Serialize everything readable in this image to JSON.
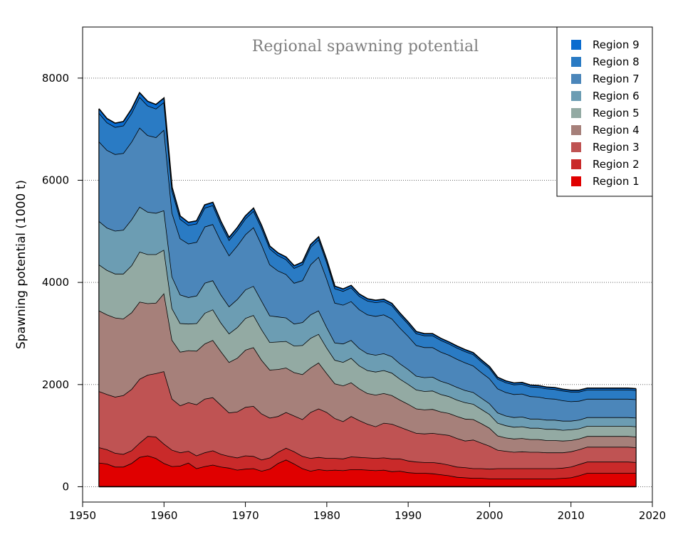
{
  "chart_data": {
    "type": "area",
    "stacked": true,
    "title": "Regional spawning potential",
    "xlabel": "",
    "ylabel": "Spawning potential (1000 t)",
    "xlim": [
      1950,
      2020
    ],
    "ylim": [
      -300,
      9000
    ],
    "xticks": [
      1950,
      1960,
      1970,
      1980,
      1990,
      2000,
      2010,
      2020
    ],
    "yticks": [
      0,
      2000,
      4000,
      6000,
      8000
    ],
    "grid": "horizontal dotted",
    "legend_position": "top-right",
    "legend_order": [
      "Region 9",
      "Region 8",
      "Region 7",
      "Region 6",
      "Region 5",
      "Region 4",
      "Region 3",
      "Region 2",
      "Region 1"
    ],
    "x": [
      1952,
      1953,
      1954,
      1955,
      1956,
      1957,
      1958,
      1959,
      1960,
      1961,
      1962,
      1963,
      1964,
      1965,
      1966,
      1967,
      1968,
      1969,
      1970,
      1971,
      1972,
      1973,
      1974,
      1975,
      1976,
      1977,
      1978,
      1979,
      1980,
      1981,
      1982,
      1983,
      1984,
      1985,
      1986,
      1987,
      1988,
      1989,
      1990,
      1991,
      1992,
      1993,
      1994,
      1995,
      1996,
      1997,
      1998,
      1999,
      2000,
      2001,
      2002,
      2003,
      2004,
      2005,
      2006,
      2007,
      2008,
      2009,
      2010,
      2011,
      2012,
      2013,
      2014,
      2015,
      2016,
      2017,
      2018
    ],
    "series": [
      {
        "name": "Region 1",
        "color": "#e00000",
        "values": [
          470,
          450,
          390,
          390,
          460,
          580,
          610,
          560,
          460,
          400,
          410,
          470,
          360,
          400,
          430,
          390,
          370,
          330,
          350,
          360,
          310,
          350,
          460,
          530,
          450,
          360,
          310,
          340,
          320,
          330,
          320,
          340,
          340,
          330,
          320,
          330,
          300,
          310,
          280,
          270,
          270,
          260,
          240,
          220,
          190,
          180,
          170,
          170,
          160,
          160,
          160,
          160,
          160,
          160,
          160,
          160,
          160,
          170,
          180,
          220,
          270,
          270,
          270,
          270,
          270,
          270,
          270
        ]
      },
      {
        "name": "Region 2",
        "color": "#c92a2a",
        "values": [
          300,
          280,
          270,
          250,
          250,
          280,
          380,
          420,
          380,
          320,
          260,
          230,
          250,
          270,
          280,
          250,
          230,
          240,
          260,
          240,
          220,
          220,
          220,
          230,
          240,
          240,
          250,
          240,
          240,
          230,
          230,
          250,
          240,
          240,
          240,
          240,
          250,
          240,
          230,
          220,
          210,
          220,
          220,
          210,
          200,
          200,
          190,
          190,
          190,
          200,
          200,
          200,
          200,
          200,
          200,
          200,
          200,
          200,
          210,
          220,
          220,
          220,
          220,
          220,
          220,
          220,
          210
        ]
      },
      {
        "name": "Region 3",
        "color": "#bf5353",
        "values": [
          1100,
          1080,
          1100,
          1150,
          1200,
          1250,
          1200,
          1240,
          1420,
          1000,
          920,
          950,
          1000,
          1050,
          1040,
          960,
          850,
          900,
          950,
          980,
          900,
          780,
          700,
          700,
          700,
          720,
          900,
          950,
          900,
          780,
          730,
          790,
          720,
          660,
          620,
          680,
          680,
          620,
          600,
          560,
          560,
          570,
          570,
          580,
          560,
          520,
          560,
          500,
          450,
          360,
          340,
          320,
          330,
          320,
          320,
          310,
          310,
          300,
          300,
          290,
          290,
          290,
          290,
          290,
          290,
          290,
          290
        ]
      },
      {
        "name": "Region 4",
        "color": "#a6807a",
        "values": [
          1580,
          1560,
          1550,
          1500,
          1500,
          1510,
          1400,
          1380,
          1530,
          1150,
          1050,
          1020,
          1050,
          1080,
          1120,
          1050,
          990,
          1050,
          1120,
          1150,
          1050,
          940,
          920,
          870,
          850,
          880,
          870,
          900,
          760,
          680,
          700,
          660,
          620,
          600,
          620,
          580,
          560,
          530,
          510,
          480,
          470,
          470,
          440,
          430,
          430,
          430,
          400,
          380,
          350,
          280,
          260,
          260,
          260,
          250,
          250,
          240,
          240,
          230,
          220,
          210,
          210,
          210,
          210,
          210,
          210,
          210,
          210
        ]
      },
      {
        "name": "Region 5",
        "color": "#93aaa3",
        "values": [
          900,
          870,
          860,
          880,
          920,
          980,
          960,
          950,
          850,
          620,
          560,
          520,
          540,
          600,
          600,
          560,
          560,
          600,
          620,
          630,
          600,
          540,
          540,
          520,
          520,
          570,
          580,
          560,
          500,
          460,
          460,
          480,
          450,
          450,
          450,
          450,
          440,
          410,
          390,
          370,
          360,
          360,
          340,
          330,
          320,
          320,
          300,
          280,
          270,
          250,
          240,
          230,
          230,
          220,
          220,
          220,
          220,
          210,
          210,
          200,
          200,
          200,
          200,
          200,
          200,
          200,
          200
        ]
      },
      {
        "name": "Region 6",
        "color": "#6c9db3",
        "values": [
          850,
          830,
          840,
          860,
          900,
          880,
          830,
          810,
          770,
          620,
          560,
          520,
          540,
          590,
          570,
          550,
          530,
          550,
          560,
          570,
          560,
          520,
          490,
          460,
          430,
          450,
          460,
          460,
          400,
          340,
          360,
          350,
          340,
          330,
          330,
          330,
          320,
          300,
          290,
          270,
          270,
          270,
          260,
          250,
          250,
          240,
          230,
          220,
          210,
          200,
          190,
          190,
          190,
          180,
          180,
          180,
          180,
          180,
          170,
          170,
          170,
          170,
          170,
          170,
          170,
          170,
          170
        ]
      },
      {
        "name": "Region 7",
        "color": "#4b86ba",
        "values": [
          1560,
          1520,
          1500,
          1500,
          1520,
          1550,
          1500,
          1480,
          1580,
          1250,
          1100,
          1050,
          1050,
          1100,
          1100,
          1050,
          1000,
          1050,
          1080,
          1150,
          1100,
          1000,
          900,
          850,
          800,
          820,
          980,
          1050,
          950,
          780,
          760,
          760,
          760,
          760,
          760,
          760,
          740,
          700,
          650,
          600,
          590,
          580,
          570,
          560,
          550,
          540,
          520,
          500,
          490,
          470,
          460,
          450,
          450,
          440,
          430,
          420,
          410,
          400,
          380,
          370,
          360,
          360,
          360,
          360,
          360,
          360,
          360
        ]
      },
      {
        "name": "Region 8",
        "color": "#2a7bc4",
        "values": [
          560,
          540,
          530,
          540,
          560,
          600,
          580,
          560,
          540,
          430,
          380,
          360,
          360,
          370,
          370,
          330,
          300,
          300,
          310,
          320,
          320,
          310,
          300,
          290,
          290,
          310,
          340,
          340,
          320,
          280,
          270,
          270,
          260,
          270,
          270,
          260,
          260,
          250,
          240,
          230,
          230,
          230,
          230,
          220,
          220,
          220,
          220,
          210,
          200,
          190,
          190,
          190,
          190,
          190,
          190,
          190,
          190,
          190,
          190,
          180,
          180,
          180,
          180,
          180,
          180,
          180,
          180
        ]
      },
      {
        "name": "Region 9",
        "color": "#0a6ccf",
        "values": [
          80,
          78,
          78,
          80,
          82,
          85,
          85,
          84,
          82,
          70,
          60,
          56,
          56,
          58,
          58,
          55,
          52,
          52,
          54,
          56,
          54,
          50,
          48,
          47,
          46,
          47,
          50,
          52,
          50,
          45,
          43,
          42,
          42,
          41,
          41,
          41,
          40,
          39,
          38,
          37,
          37,
          37,
          36,
          35,
          35,
          35,
          34,
          33,
          32,
          32,
          32,
          32,
          32,
          31,
          31,
          31,
          31,
          30,
          30,
          30,
          30,
          30,
          30,
          30,
          30,
          30,
          30
        ]
      }
    ]
  }
}
